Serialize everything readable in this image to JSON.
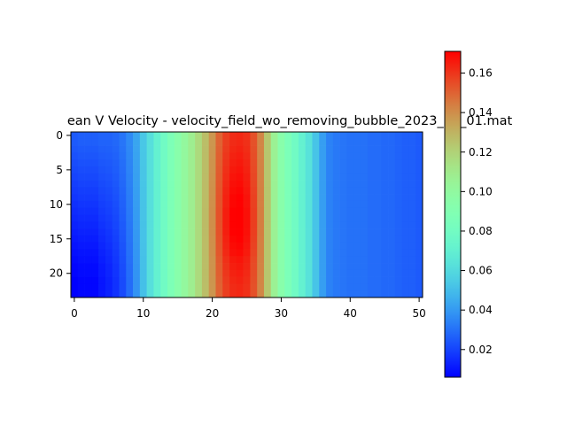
{
  "chart_data": {
    "type": "heatmap",
    "title": "ean V Velocity - velocity_field_wo_removing_bubble_2023_12_01.mat",
    "xlabel": "",
    "ylabel": "",
    "colormap": "rainbow",
    "origin": "upper",
    "grid": false,
    "n_cols": 51,
    "n_rows": 24,
    "xlim": [
      -0.5,
      50.5
    ],
    "ylim": [
      23.5,
      -0.5
    ],
    "x_ticks": [
      0,
      10,
      20,
      30,
      40,
      50
    ],
    "x_tick_labels": [
      "0",
      "10",
      "20",
      "30",
      "40",
      "50"
    ],
    "y_ticks": [
      0,
      5,
      10,
      15,
      20
    ],
    "y_tick_labels": [
      "0",
      "5",
      "10",
      "15",
      "20"
    ],
    "colorbar": {
      "vmin": 0.006,
      "vmax": 0.171,
      "ticks": [
        0.02,
        0.04,
        0.06,
        0.08,
        0.1,
        0.12,
        0.14,
        0.16
      ],
      "tick_labels": [
        "0.02",
        "0.04",
        "0.06",
        "0.08",
        "0.10",
        "0.12",
        "0.14",
        "0.16"
      ]
    },
    "column_profile": [
      0.025,
      0.026,
      0.026,
      0.026,
      0.027,
      0.027,
      0.028,
      0.031,
      0.036,
      0.043,
      0.053,
      0.062,
      0.071,
      0.079,
      0.087,
      0.094,
      0.101,
      0.108,
      0.117,
      0.127,
      0.138,
      0.15,
      0.158,
      0.162,
      0.163,
      0.161,
      0.154,
      0.142,
      0.124,
      0.106,
      0.094,
      0.086,
      0.079,
      0.071,
      0.063,
      0.052,
      0.041,
      0.034,
      0.032,
      0.031,
      0.03,
      0.03,
      0.03,
      0.029,
      0.029,
      0.028,
      0.028,
      0.027,
      0.026,
      0.026,
      0.025
    ],
    "row_modifiers": {
      "center_column": 23.5,
      "peak_boost_by_row": [
        0.0,
        0.0,
        0.001,
        0.002,
        0.003,
        0.004,
        0.005,
        0.006,
        0.007,
        0.008,
        0.008,
        0.009,
        0.009,
        0.009,
        0.009,
        0.008,
        0.007,
        0.006,
        0.004,
        0.003,
        0.002,
        0.001,
        0.0,
        0.0
      ],
      "left_low_drop_by_row": [
        0.0,
        0.0,
        0.001,
        0.002,
        0.003,
        0.004,
        0.005,
        0.006,
        0.007,
        0.008,
        0.009,
        0.01,
        0.011,
        0.012,
        0.013,
        0.014,
        0.015,
        0.016,
        0.017,
        0.018,
        0.018,
        0.019,
        0.019,
        0.019
      ]
    }
  }
}
